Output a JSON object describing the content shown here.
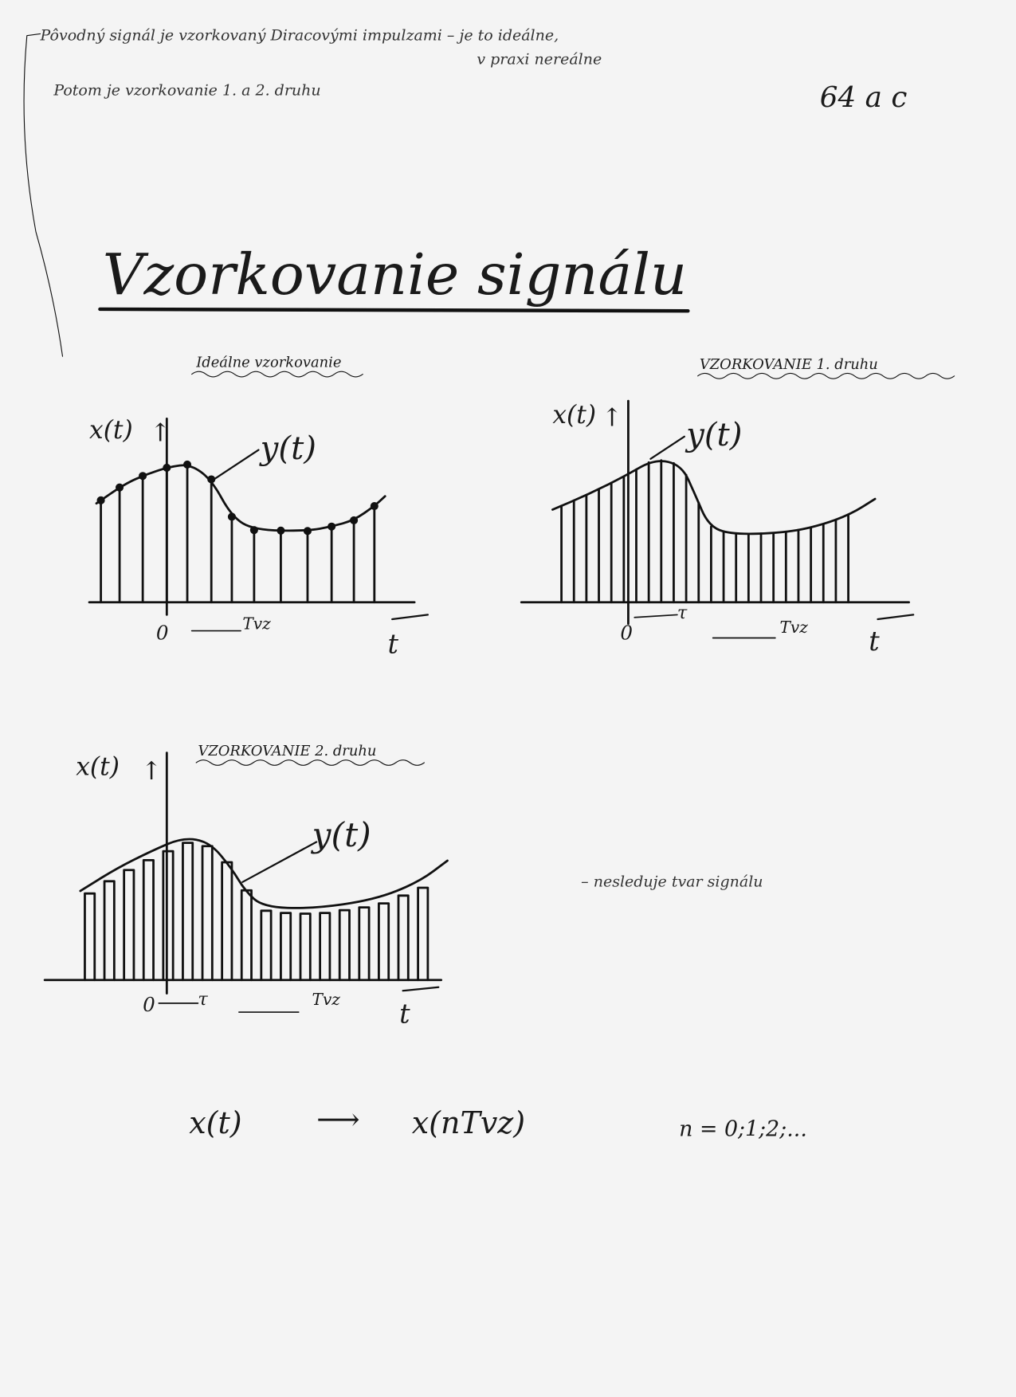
{
  "notes": {
    "line1": "Pôvodný signál je vzorkovaný Diracovými impulzami – je to ideálne,",
    "line1b": "v praxi nereálne",
    "line2": "Potom je vzorkovanie 1. a 2. druhu",
    "page_number": "64 a c"
  },
  "title": "Vzorkovanie signálu",
  "plots": [
    {
      "heading": "Ideálne vzorkovanie",
      "y_label": "x(t)",
      "curve_label": "y(t)",
      "origin": "0",
      "period": "Tvz",
      "x_label": "t"
    },
    {
      "heading": "VZORKOVANIE 1. druhu",
      "y_label": "x(t)",
      "curve_label": "y(t)",
      "origin": "0",
      "pulse_width": "τ",
      "period": "Tvz",
      "x_label": "t"
    },
    {
      "heading": "VZORKOVANIE 2. druhu",
      "y_label": "x(t)",
      "curve_label": "y(t)",
      "origin": "0",
      "pulse_width": "τ",
      "period": "Tvz",
      "x_label": "t",
      "side_note": "– nesleduje tvar signálu"
    }
  ],
  "formula": {
    "left": "x(t)",
    "arrow": "⟶",
    "right": "x(nTvz)",
    "index": "n = 0;1;2;..."
  },
  "colors": {
    "paper": "#f4f4f4",
    "ink": "#111111"
  }
}
